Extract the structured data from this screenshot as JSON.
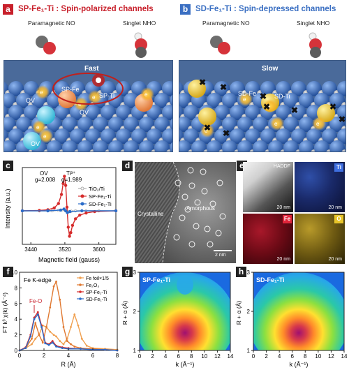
{
  "panel_a": {
    "tag": "a",
    "title": "SP-Fe₁-Ti : Spin-polarized channels",
    "mol_left": "Paramagnetic NO",
    "mol_right": "Singlet NHO",
    "fast": "Fast",
    "labels": {
      "sp_fe": "SP-Fe",
      "sp_ti": "SP-Ti",
      "ov1": "OV",
      "ov2": "OV",
      "ov3": "OV",
      "e": "e"
    },
    "colors": {
      "tag": "#c8202b",
      "title": "#c8202b"
    }
  },
  "panel_b": {
    "tag": "b",
    "title": "SD-Fe₁-Ti : Spin-depressed channels",
    "mol_left": "Paramagnetic NO",
    "mol_right": "Singlet NHO",
    "slow": "Slow",
    "labels": {
      "sd_fe": "SD-Fe",
      "sd_ti": "SD-Ti",
      "e": "e"
    },
    "colors": {
      "tag": "#3a6fc2",
      "title": "#3a6fc2"
    }
  },
  "panel_c": {
    "tag": "c",
    "ov_label": "OV",
    "ov_g": "g=2.008",
    "ti_label": "Ti³⁺",
    "ti_g": "g=1.989",
    "chart_data": {
      "type": "line",
      "xlabel": "Magnetic field (gauss)",
      "ylabel": "Intensity (a.u.)",
      "x_ticks": [
        "3440",
        "3520",
        "3600"
      ],
      "xlim": [
        3420,
        3640
      ],
      "series": [
        {
          "name": "TiO₂/Ti",
          "color": "#b0b0b0",
          "marker": "circle-open",
          "x": [
            3420,
            3460,
            3490,
            3505,
            3512,
            3518,
            3522,
            3526,
            3530,
            3535,
            3545,
            3570,
            3600,
            3640
          ],
          "y": [
            0,
            0,
            0,
            0.01,
            0.02,
            0.03,
            0,
            -0.03,
            -0.02,
            -0.01,
            0,
            0,
            0,
            0
          ]
        },
        {
          "name": "SP-Fe₁-Ti",
          "color": "#d62b2b",
          "marker": "circle",
          "x": [
            3420,
            3460,
            3480,
            3495,
            3505,
            3512,
            3516,
            3519,
            3522,
            3525,
            3528,
            3531,
            3534,
            3538,
            3545,
            3555,
            3570,
            3590,
            3640
          ],
          "y": [
            0,
            0.01,
            0.03,
            0.08,
            0.2,
            0.45,
            0.75,
            0.95,
            0.7,
            0.1,
            -0.45,
            -0.7,
            -0.6,
            -0.4,
            -0.22,
            -0.12,
            -0.06,
            -0.02,
            0
          ]
        },
        {
          "name": "SD-Fe₁-Ti",
          "color": "#2a6cc9",
          "marker": "circle",
          "x": [
            3420,
            3480,
            3510,
            3518,
            3522,
            3526,
            3532,
            3560,
            3640
          ],
          "y": [
            0,
            0,
            0.02,
            0.05,
            0,
            -0.05,
            -0.02,
            0,
            0
          ]
        }
      ]
    }
  },
  "panel_d": {
    "tag": "d",
    "crystalline": "Crystalline",
    "amorphous": "Amorphous",
    "scale": "2 nm"
  },
  "panel_e": {
    "tag": "e",
    "maps": [
      {
        "label": "HADDF",
        "scale": "20 nm",
        "color": "#ffffff"
      },
      {
        "label": "Ti",
        "scale": "20 nm",
        "color": "#3f6fe0"
      },
      {
        "label": "Fe",
        "scale": "20 nm",
        "color": "#e0253a"
      },
      {
        "label": "O",
        "scale": "20 nm",
        "color": "#e8c52a"
      }
    ]
  },
  "panel_f": {
    "tag": "f",
    "edge": "Fe K-edge",
    "feo": "Fe-O",
    "chart_data": {
      "type": "line",
      "xlabel": "R (Å)",
      "ylabel": "FT k³ χ(k) (Å⁻⁴)",
      "x_ticks": [
        "0",
        "2",
        "4",
        "6",
        "8"
      ],
      "y_ticks": [
        "0",
        "2",
        "4",
        "6",
        "8",
        "10"
      ],
      "xlim": [
        0,
        8
      ],
      "ylim": [
        0,
        10
      ],
      "series": [
        {
          "name": "Fe foil×1/5",
          "color": "#f0a050",
          "x": [
            0,
            0.5,
            1.0,
            1.3,
            1.6,
            1.9,
            2.2,
            2.5,
            2.8,
            3.0,
            3.3,
            3.6,
            3.9,
            4.2,
            4.5,
            4.8,
            5.1,
            5.5,
            6,
            7,
            8
          ],
          "y": [
            0,
            0.3,
            0.8,
            1.5,
            2.0,
            3.2,
            3.0,
            2.4,
            2.0,
            1.8,
            1.2,
            0.8,
            1.5,
            3.0,
            4.6,
            3.2,
            1.5,
            0.6,
            0.3,
            0.2,
            0.1
          ]
        },
        {
          "name": "Fe₂O₃",
          "color": "#e07830",
          "x": [
            0,
            0.5,
            1.0,
            1.3,
            1.6,
            1.9,
            2.2,
            2.5,
            2.8,
            3.0,
            3.3,
            3.6,
            3.9,
            4.2,
            4.5,
            5,
            6,
            7,
            8
          ],
          "y": [
            0,
            0.3,
            1.5,
            3.5,
            2.0,
            1.0,
            3.0,
            5.5,
            8.2,
            8.8,
            6.5,
            3.0,
            1.2,
            0.8,
            0.5,
            0.3,
            0.2,
            0.1,
            0
          ]
        },
        {
          "name": "SP-Fe₁-Ti",
          "color": "#d62b2b",
          "x": [
            0,
            0.5,
            0.9,
            1.2,
            1.5,
            1.8,
            2.1,
            2.4,
            2.7,
            3.0,
            3.5,
            4,
            5,
            6,
            7,
            8
          ],
          "y": [
            0,
            0.4,
            2.0,
            4.2,
            4.9,
            3.2,
            1.0,
            0.8,
            1.2,
            0.6,
            0.4,
            0.3,
            0.2,
            0.1,
            0.1,
            0
          ]
        },
        {
          "name": "SD-Fe₁-Ti",
          "color": "#2a6cc9",
          "x": [
            0,
            0.5,
            0.9,
            1.2,
            1.5,
            1.8,
            2.1,
            2.4,
            2.7,
            3.0,
            3.5,
            4,
            5,
            6,
            7,
            8
          ],
          "y": [
            0,
            0.3,
            1.8,
            4.0,
            4.6,
            3.0,
            0.9,
            0.7,
            1.0,
            0.5,
            0.3,
            0.2,
            0.2,
            0.1,
            0.1,
            0
          ]
        }
      ]
    }
  },
  "panel_g": {
    "tag": "g",
    "label": "SP-Fe₁-Ti",
    "chart_data": {
      "type": "heatmap",
      "xlabel": "k (Å⁻¹)",
      "ylabel": "R + α (Å)",
      "x_ticks": [
        "0",
        "2",
        "4",
        "6",
        "8",
        "10",
        "12",
        "14"
      ],
      "y_ticks": [
        "1",
        "2",
        "3"
      ],
      "xlim": [
        0,
        14
      ],
      "ylim": [
        1,
        3
      ],
      "peak": {
        "k": 7.5,
        "r": 1.45
      }
    }
  },
  "panel_h": {
    "tag": "h",
    "label": "SD-Fe₁-Ti",
    "chart_data": {
      "type": "heatmap",
      "xlabel": "k (Å⁻¹)",
      "ylabel": "R + α (Å)",
      "x_ticks": [
        "0",
        "2",
        "4",
        "6",
        "8",
        "10",
        "12",
        "14"
      ],
      "y_ticks": [
        "1",
        "2",
        "3"
      ],
      "xlim": [
        0,
        14
      ],
      "ylim": [
        1,
        3
      ],
      "peak": {
        "k": 7.5,
        "r": 1.45
      }
    }
  }
}
